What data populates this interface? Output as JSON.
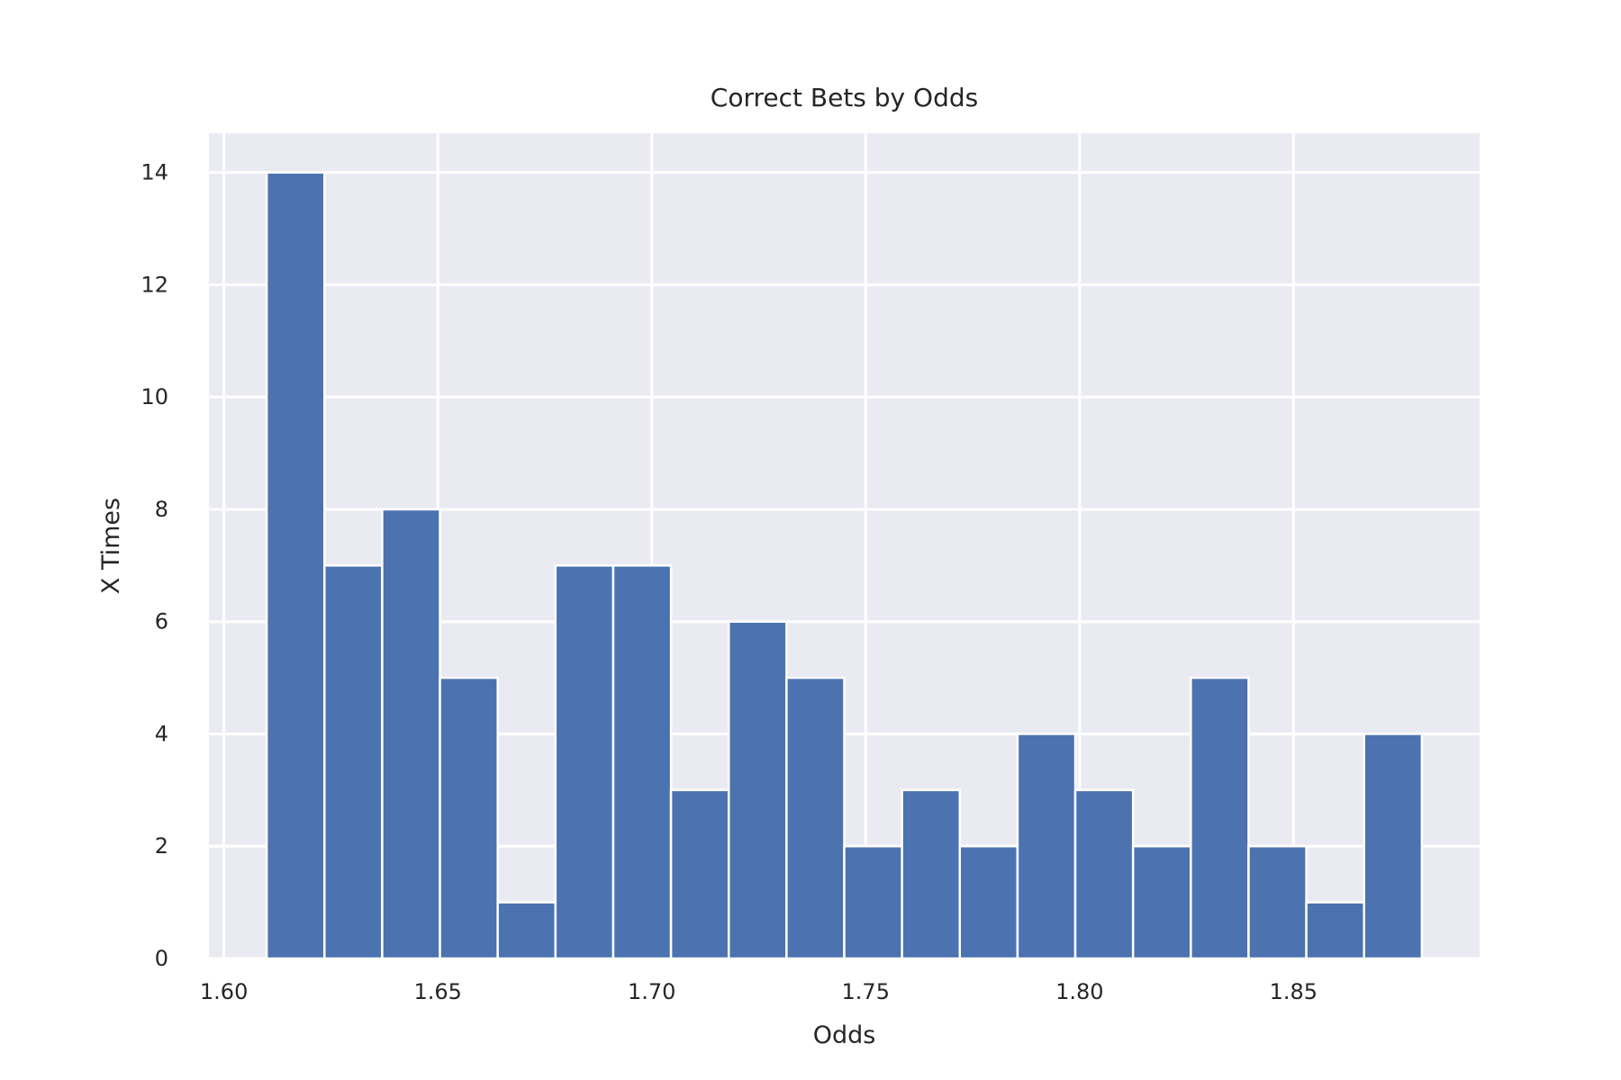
{
  "chart_data": {
    "type": "bar",
    "title": "Correct Bets by Odds",
    "xlabel": "Odds",
    "ylabel": "X Times",
    "bin_edges": [
      1.61,
      1.6235,
      1.637,
      1.6505,
      1.664,
      1.6775,
      1.691,
      1.7045,
      1.718,
      1.7315,
      1.745,
      1.7585,
      1.772,
      1.7855,
      1.799,
      1.8125,
      1.826,
      1.8395,
      1.853,
      1.8665,
      1.88
    ],
    "values": [
      14,
      7,
      8,
      5,
      1,
      7,
      7,
      3,
      6,
      5,
      2,
      3,
      2,
      4,
      3,
      2,
      5,
      2,
      1,
      4
    ],
    "xlim": [
      1.5965,
      1.8935
    ],
    "ylim": [
      0,
      14.7
    ],
    "x_ticks": [
      "1.60",
      "1.65",
      "1.70",
      "1.75",
      "1.80",
      "1.85"
    ],
    "x_tick_values": [
      1.6,
      1.65,
      1.7,
      1.75,
      1.8,
      1.85
    ],
    "y_ticks": [
      "0",
      "2",
      "4",
      "6",
      "8",
      "10",
      "12",
      "14"
    ],
    "y_tick_values": [
      0,
      2,
      4,
      6,
      8,
      10,
      12,
      14
    ],
    "grid": true,
    "colors": {
      "bar": "#4c72b0",
      "plot_background": "#eaeaf2",
      "grid": "#ffffff",
      "text": "#262626"
    }
  }
}
